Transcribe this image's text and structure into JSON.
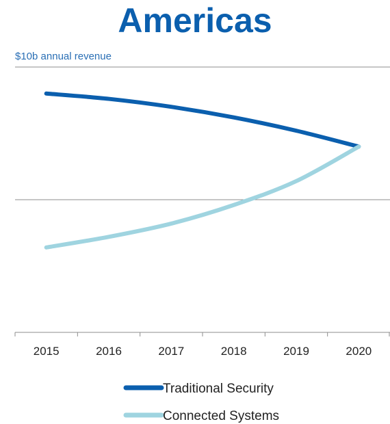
{
  "chart_data": {
    "type": "line",
    "title": "Americas",
    "ylabel": "$10b annual revenue",
    "xlabel": "",
    "x": [
      "2015",
      "2016",
      "2017",
      "2018",
      "2019",
      "2020"
    ],
    "ylim": [
      0,
      10
    ],
    "grid": true,
    "legend_position": "bottom",
    "series": [
      {
        "name": "Traditional Security",
        "color": "#0b5fae",
        "values": [
          9.0,
          8.8,
          8.5,
          8.1,
          7.6,
          7.0
        ]
      },
      {
        "name": "Connected Systems",
        "color": "#9fd4e0",
        "values": [
          3.2,
          3.6,
          4.1,
          4.8,
          5.7,
          7.0
        ]
      }
    ]
  }
}
